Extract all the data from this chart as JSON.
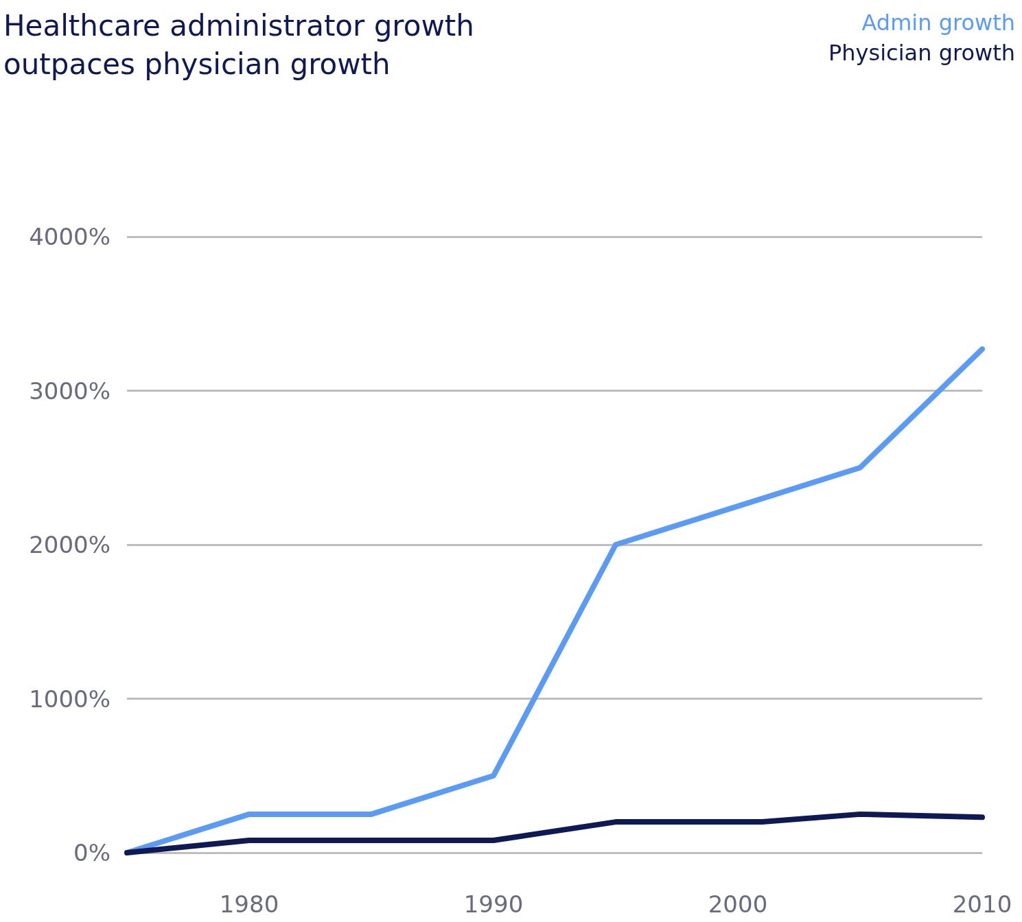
{
  "chart_data": {
    "type": "line",
    "title": "Healthcare administrator growth\noutpaces physician growth",
    "series": [
      {
        "name": "Admin growth",
        "color": "#5b9bf8",
        "x": [
          1975,
          1980,
          1985,
          1990,
          1995,
          2005,
          2010
        ],
        "values": [
          0,
          250,
          250,
          500,
          2000,
          2500,
          3270
        ]
      },
      {
        "name": "Physician growth",
        "color": "#0f1a54",
        "x": [
          1975,
          1980,
          1985,
          1990,
          1995,
          2001,
          2005,
          2010
        ],
        "values": [
          0,
          80,
          80,
          80,
          200,
          200,
          250,
          230
        ]
      }
    ],
    "xlim": [
      1975,
      2010
    ],
    "xticks": [
      1980,
      1990,
      2000,
      2010
    ],
    "ylim": [
      0,
      4000
    ],
    "yticks": [
      {
        "value": 0,
        "label": "0%"
      },
      {
        "value": 1000,
        "label": "1000%"
      },
      {
        "value": 2000,
        "label": "2000%"
      },
      {
        "value": 3000,
        "label": "3000%"
      },
      {
        "value": 4000,
        "label": "4000%"
      }
    ],
    "grid": "y",
    "legend": "top right",
    "marker": "none",
    "line_style": "solid"
  }
}
